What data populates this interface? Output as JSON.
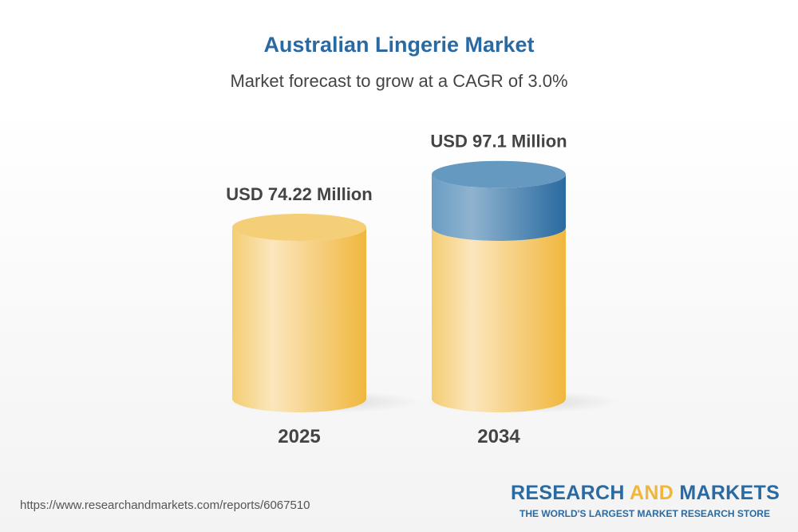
{
  "title": "Australian Lingerie Market",
  "subtitle": "Market forecast to grow at a CAGR of 3.0%",
  "chart_data": {
    "type": "bar",
    "style": "3d-cylinder",
    "categories": [
      "2025",
      "2034"
    ],
    "values": [
      74.22,
      97.1
    ],
    "data_labels": [
      "USD 74.22 Million",
      "USD 97.1 Million"
    ],
    "title": "Australian Lingerie Market",
    "subtitle": "Market forecast to grow at a CAGR of 3.0%",
    "colors": {
      "base": "#f2c45a",
      "growth": "#3f7fb0"
    }
  },
  "footer": {
    "url": "https://www.researchandmarkets.com/reports/6067510",
    "logo_part1": "RESEARCH ",
    "logo_part2": "AND",
    "logo_part3": " MARKETS",
    "tagline": "THE WORLD'S LARGEST MARKET RESEARCH STORE"
  }
}
